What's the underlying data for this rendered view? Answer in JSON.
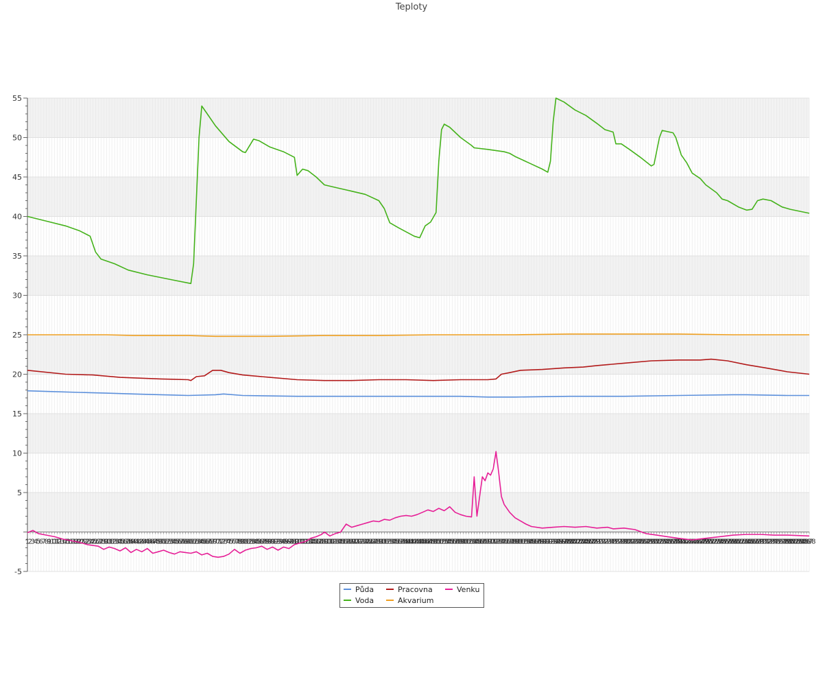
{
  "chart_data": {
    "type": "line",
    "title": "Teploty",
    "xlabel": "",
    "ylabel": "",
    "ylim": [
      -5,
      55
    ],
    "yticks": [
      -5,
      5,
      10,
      15,
      20,
      25,
      30,
      35,
      40,
      45,
      50,
      55
    ],
    "grid": true,
    "legend": "bottom-center",
    "x_count": 288,
    "x_tick_labels": "1..288 (dense, overlapping along zero line)",
    "series": [
      {
        "name": "Půda",
        "color": "#5b8fdb",
        "points": [
          [
            1,
            17.9
          ],
          [
            10,
            17.8
          ],
          [
            20,
            17.7
          ],
          [
            30,
            17.6
          ],
          [
            40,
            17.5
          ],
          [
            50,
            17.4
          ],
          [
            60,
            17.3
          ],
          [
            70,
            17.4
          ],
          [
            73,
            17.5
          ],
          [
            80,
            17.3
          ],
          [
            100,
            17.2
          ],
          [
            120,
            17.2
          ],
          [
            140,
            17.2
          ],
          [
            160,
            17.2
          ],
          [
            170,
            17.1
          ],
          [
            180,
            17.1
          ],
          [
            200,
            17.2
          ],
          [
            220,
            17.2
          ],
          [
            240,
            17.3
          ],
          [
            260,
            17.4
          ],
          [
            265,
            17.4
          ],
          [
            280,
            17.3
          ],
          [
            288,
            17.3
          ]
        ]
      },
      {
        "name": "Voda",
        "color": "#44b21a",
        "points": [
          [
            1,
            40.0
          ],
          [
            8,
            39.4
          ],
          [
            15,
            38.8
          ],
          [
            20,
            38.2
          ],
          [
            24,
            37.5
          ],
          [
            26,
            35.5
          ],
          [
            28,
            34.6
          ],
          [
            33,
            34.0
          ],
          [
            38,
            33.2
          ],
          [
            45,
            32.6
          ],
          [
            55,
            31.9
          ],
          [
            61,
            31.5
          ],
          [
            62,
            34.0
          ],
          [
            64,
            50.0
          ],
          [
            65,
            54.0
          ],
          [
            67,
            53.0
          ],
          [
            70,
            51.5
          ],
          [
            75,
            49.5
          ],
          [
            80,
            48.2
          ],
          [
            81,
            48.1
          ],
          [
            84,
            49.8
          ],
          [
            86,
            49.6
          ],
          [
            90,
            48.8
          ],
          [
            95,
            48.2
          ],
          [
            99,
            47.5
          ],
          [
            100,
            45.2
          ],
          [
            102,
            46.0
          ],
          [
            104,
            45.8
          ],
          [
            107,
            45.0
          ],
          [
            110,
            44.0
          ],
          [
            115,
            43.6
          ],
          [
            120,
            43.2
          ],
          [
            125,
            42.8
          ],
          [
            130,
            42.0
          ],
          [
            132,
            41.0
          ],
          [
            134,
            39.2
          ],
          [
            137,
            38.6
          ],
          [
            143,
            37.5
          ],
          [
            145,
            37.3
          ],
          [
            147,
            38.8
          ],
          [
            149,
            39.3
          ],
          [
            151,
            40.5
          ],
          [
            152,
            47.0
          ],
          [
            153,
            51.0
          ],
          [
            154,
            51.7
          ],
          [
            156,
            51.3
          ],
          [
            160,
            50.0
          ],
          [
            164,
            49.0
          ],
          [
            165,
            48.7
          ],
          [
            170,
            48.5
          ],
          [
            176,
            48.2
          ],
          [
            178,
            48.0
          ],
          [
            180,
            47.6
          ],
          [
            185,
            46.8
          ],
          [
            190,
            46.0
          ],
          [
            192,
            45.6
          ],
          [
            193,
            47.0
          ],
          [
            194,
            52.0
          ],
          [
            195,
            55.0
          ],
          [
            198,
            54.5
          ],
          [
            202,
            53.5
          ],
          [
            206,
            52.8
          ],
          [
            210,
            51.8
          ],
          [
            213,
            51.0
          ],
          [
            216,
            50.7
          ],
          [
            217,
            49.2
          ],
          [
            219,
            49.2
          ],
          [
            222,
            48.5
          ],
          [
            226,
            47.5
          ],
          [
            230,
            46.4
          ],
          [
            231,
            46.6
          ],
          [
            233,
            50.0
          ],
          [
            234,
            50.9
          ],
          [
            238,
            50.6
          ],
          [
            239,
            50.0
          ],
          [
            241,
            47.8
          ],
          [
            243,
            46.8
          ],
          [
            245,
            45.5
          ],
          [
            248,
            44.8
          ],
          [
            250,
            44.0
          ],
          [
            254,
            43.0
          ],
          [
            256,
            42.2
          ],
          [
            258,
            42.0
          ],
          [
            262,
            41.2
          ],
          [
            265,
            40.8
          ],
          [
            267,
            40.9
          ],
          [
            269,
            42.0
          ],
          [
            271,
            42.2
          ],
          [
            274,
            42.0
          ],
          [
            278,
            41.2
          ],
          [
            281,
            40.9
          ],
          [
            288,
            40.4
          ]
        ]
      },
      {
        "name": "Pracovna",
        "color": "#b21a1a",
        "points": [
          [
            1,
            20.5
          ],
          [
            15,
            20.0
          ],
          [
            25,
            19.9
          ],
          [
            35,
            19.6
          ],
          [
            50,
            19.4
          ],
          [
            60,
            19.3
          ],
          [
            61,
            19.2
          ],
          [
            63,
            19.7
          ],
          [
            66,
            19.8
          ],
          [
            69,
            20.5
          ],
          [
            72,
            20.5
          ],
          [
            75,
            20.2
          ],
          [
            80,
            19.9
          ],
          [
            90,
            19.6
          ],
          [
            100,
            19.3
          ],
          [
            110,
            19.2
          ],
          [
            120,
            19.2
          ],
          [
            130,
            19.3
          ],
          [
            140,
            19.3
          ],
          [
            150,
            19.2
          ],
          [
            160,
            19.3
          ],
          [
            170,
            19.3
          ],
          [
            173,
            19.4
          ],
          [
            175,
            20.0
          ],
          [
            178,
            20.2
          ],
          [
            182,
            20.5
          ],
          [
            190,
            20.6
          ],
          [
            198,
            20.8
          ],
          [
            205,
            20.9
          ],
          [
            210,
            21.1
          ],
          [
            220,
            21.4
          ],
          [
            230,
            21.7
          ],
          [
            240,
            21.8
          ],
          [
            248,
            21.8
          ],
          [
            252,
            21.9
          ],
          [
            258,
            21.7
          ],
          [
            265,
            21.2
          ],
          [
            272,
            20.8
          ],
          [
            280,
            20.3
          ],
          [
            288,
            20.0
          ]
        ]
      },
      {
        "name": "Akvarium",
        "color": "#f0a020",
        "points": [
          [
            1,
            25.0
          ],
          [
            30,
            25.0
          ],
          [
            40,
            24.9
          ],
          [
            60,
            24.9
          ],
          [
            70,
            24.8
          ],
          [
            90,
            24.8
          ],
          [
            110,
            24.9
          ],
          [
            130,
            24.9
          ],
          [
            150,
            25.0
          ],
          [
            170,
            25.0
          ],
          [
            180,
            25.0
          ],
          [
            200,
            25.1
          ],
          [
            220,
            25.1
          ],
          [
            240,
            25.1
          ],
          [
            260,
            25.0
          ],
          [
            270,
            25.0
          ],
          [
            288,
            25.0
          ]
        ]
      },
      {
        "name": "Venku",
        "color": "#e61e96",
        "points": [
          [
            1,
            -0.1
          ],
          [
            3,
            0.2
          ],
          [
            5,
            -0.2
          ],
          [
            8,
            -0.4
          ],
          [
            11,
            -0.6
          ],
          [
            14,
            -0.9
          ],
          [
            17,
            -1.1
          ],
          [
            20,
            -1.3
          ],
          [
            23,
            -1.6
          ],
          [
            27,
            -1.8
          ],
          [
            29,
            -2.2
          ],
          [
            31,
            -1.9
          ],
          [
            33,
            -2.1
          ],
          [
            35,
            -2.4
          ],
          [
            37,
            -2.0
          ],
          [
            39,
            -2.6
          ],
          [
            41,
            -2.2
          ],
          [
            43,
            -2.5
          ],
          [
            45,
            -2.1
          ],
          [
            47,
            -2.7
          ],
          [
            49,
            -2.5
          ],
          [
            51,
            -2.3
          ],
          [
            53,
            -2.6
          ],
          [
            55,
            -2.8
          ],
          [
            57,
            -2.5
          ],
          [
            59,
            -2.6
          ],
          [
            61,
            -2.7
          ],
          [
            63,
            -2.5
          ],
          [
            65,
            -2.9
          ],
          [
            67,
            -2.7
          ],
          [
            69,
            -3.1
          ],
          [
            71,
            -3.2
          ],
          [
            73,
            -3.1
          ],
          [
            75,
            -2.8
          ],
          [
            77,
            -2.2
          ],
          [
            79,
            -2.7
          ],
          [
            81,
            -2.3
          ],
          [
            83,
            -2.1
          ],
          [
            85,
            -2.0
          ],
          [
            87,
            -1.8
          ],
          [
            89,
            -2.2
          ],
          [
            91,
            -1.9
          ],
          [
            93,
            -2.3
          ],
          [
            95,
            -1.9
          ],
          [
            97,
            -2.1
          ],
          [
            99,
            -1.6
          ],
          [
            101,
            -1.4
          ],
          [
            103,
            -1.2
          ],
          [
            105,
            -0.8
          ],
          [
            107,
            -0.6
          ],
          [
            109,
            -0.3
          ],
          [
            110,
            0.0
          ],
          [
            112,
            -0.5
          ],
          [
            114,
            -0.2
          ],
          [
            116,
            0.0
          ],
          [
            118,
            1.0
          ],
          [
            120,
            0.6
          ],
          [
            122,
            0.8
          ],
          [
            124,
            1.0
          ],
          [
            126,
            1.2
          ],
          [
            128,
            1.4
          ],
          [
            130,
            1.3
          ],
          [
            132,
            1.6
          ],
          [
            134,
            1.5
          ],
          [
            136,
            1.8
          ],
          [
            138,
            2.0
          ],
          [
            140,
            2.1
          ],
          [
            142,
            2.0
          ],
          [
            144,
            2.2
          ],
          [
            146,
            2.5
          ],
          [
            148,
            2.8
          ],
          [
            150,
            2.6
          ],
          [
            152,
            3.0
          ],
          [
            154,
            2.7
          ],
          [
            156,
            3.2
          ],
          [
            158,
            2.5
          ],
          [
            160,
            2.2
          ],
          [
            162,
            2.0
          ],
          [
            164,
            1.9
          ],
          [
            165,
            7.0
          ],
          [
            166,
            2.0
          ],
          [
            168,
            7.0
          ],
          [
            169,
            6.5
          ],
          [
            170,
            7.5
          ],
          [
            171,
            7.2
          ],
          [
            172,
            8.0
          ],
          [
            173,
            10.2
          ],
          [
            174,
            7.5
          ],
          [
            175,
            4.5
          ],
          [
            176,
            3.5
          ],
          [
            178,
            2.5
          ],
          [
            180,
            1.8
          ],
          [
            182,
            1.4
          ],
          [
            184,
            1.0
          ],
          [
            186,
            0.7
          ],
          [
            190,
            0.5
          ],
          [
            194,
            0.6
          ],
          [
            198,
            0.7
          ],
          [
            202,
            0.6
          ],
          [
            206,
            0.7
          ],
          [
            210,
            0.5
          ],
          [
            214,
            0.6
          ],
          [
            216,
            0.4
          ],
          [
            220,
            0.5
          ],
          [
            224,
            0.3
          ],
          [
            228,
            -0.2
          ],
          [
            232,
            -0.4
          ],
          [
            236,
            -0.6
          ],
          [
            240,
            -0.8
          ],
          [
            245,
            -1.0
          ],
          [
            250,
            -0.8
          ],
          [
            255,
            -0.6
          ],
          [
            260,
            -0.4
          ],
          [
            265,
            -0.3
          ],
          [
            270,
            -0.3
          ],
          [
            275,
            -0.4
          ],
          [
            280,
            -0.4
          ],
          [
            288,
            -0.5
          ]
        ]
      }
    ]
  },
  "legend": {
    "items": [
      {
        "label": "Půda",
        "color": "#5b8fdb"
      },
      {
        "label": "Pracovna",
        "color": "#b21a1a"
      },
      {
        "label": "Venku",
        "color": "#e61e96"
      },
      {
        "label": "Voda",
        "color": "#44b21a"
      },
      {
        "label": "Akvarium",
        "color": "#f0a020"
      }
    ]
  }
}
